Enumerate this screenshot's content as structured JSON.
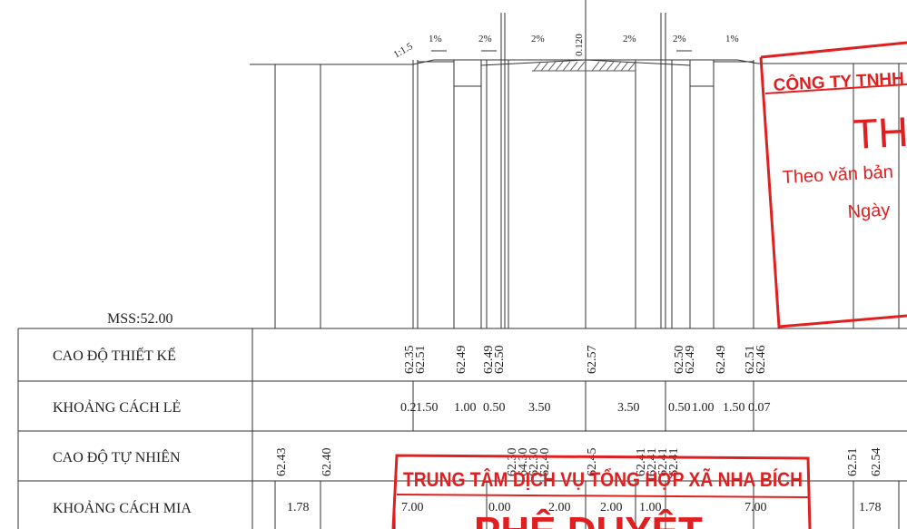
{
  "section": {
    "datum_label": "MSS:52.00",
    "slope_labels": [
      "1:1.5",
      "1%",
      "2%",
      "2%",
      "0.120",
      "2%",
      "2%",
      "1%"
    ]
  },
  "table": {
    "row_labels": [
      "CAO ĐỘ THIẾT KẾ",
      "KHOẢNG CÁCH LẺ",
      "CAO ĐỘ TỰ NHIÊN",
      "KHOẢNG CÁCH MIA"
    ],
    "design_elevations": [
      "62.35",
      "62.51",
      "62.49",
      "62.49",
      "62.50",
      "62.57",
      "62.50",
      "62.49",
      "62.49",
      "62.51",
      "62.46"
    ],
    "odd_distances": [
      "0.2",
      "1.50",
      "1.00",
      "0.50",
      "3.50",
      "3.50",
      "0.50",
      "1.00",
      "1.50",
      "0.07"
    ],
    "natural_elevations": [
      "62.43",
      "62.40",
      "62.30",
      "64.30",
      "62.30",
      "62.40",
      "62.45",
      "62.41",
      "62.41",
      "62.41",
      "62.41",
      "62.51",
      "62.54"
    ],
    "staff_distances": [
      "1.78",
      "7.00",
      "0.00",
      "2.00",
      "2.00",
      "1.00",
      "7.00",
      "1.78"
    ]
  },
  "stamps": {
    "company_name": "CÔNG TY TNHH M",
    "company_big": "TH",
    "company_line1": "Theo văn bản",
    "company_line2": "Ngày",
    "center_name": "TRUNG TÂM DỊCH VỤ TỔNG HỢP XÃ NHA BÍCH",
    "center_big": "PHÊ DUYỆT"
  },
  "colors": {
    "stamp": "#e02020",
    "ink": "#222222"
  }
}
